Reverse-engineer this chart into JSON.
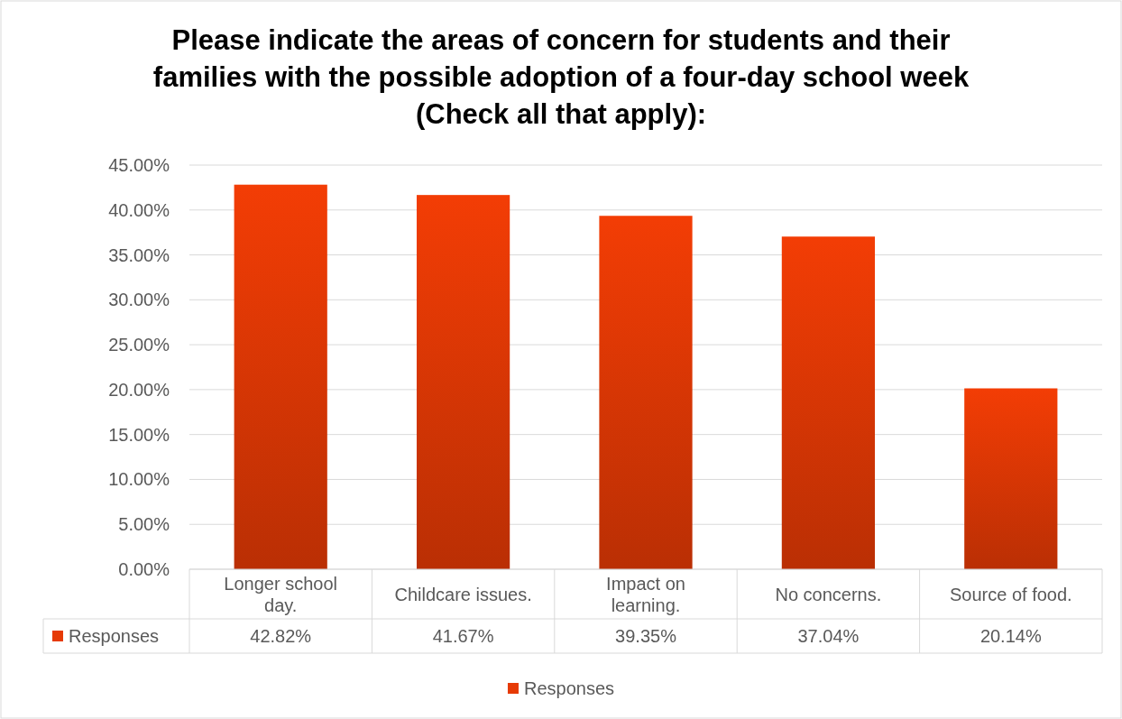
{
  "chart_data": {
    "type": "bar",
    "title": "Please indicate the areas of concern for students and their families with the possible adoption of a four-day school week (Check all that apply):",
    "categories": [
      "Longer school day.",
      "Childcare issues.",
      "Impact on learning.",
      "No concerns.",
      "Source of food."
    ],
    "series": [
      {
        "name": "Responses",
        "color": "#e63a05",
        "values": [
          42.82,
          41.67,
          39.35,
          37.04,
          20.14
        ],
        "value_labels": [
          "42.82%",
          "41.67%",
          "39.35%",
          "37.04%",
          "20.14%"
        ]
      }
    ],
    "ylim": [
      0,
      45
    ],
    "yticks": [
      {
        "value": 0,
        "label": "0.00%"
      },
      {
        "value": 5,
        "label": "5.00%"
      },
      {
        "value": 10,
        "label": "10.00%"
      },
      {
        "value": 15,
        "label": "15.00%"
      },
      {
        "value": 20,
        "label": "20.00%"
      },
      {
        "value": 25,
        "label": "25.00%"
      },
      {
        "value": 30,
        "label": "30.00%"
      },
      {
        "value": 35,
        "label": "35.00%"
      },
      {
        "value": 40,
        "label": "40.00%"
      },
      {
        "value": 45,
        "label": "45.00%"
      }
    ],
    "grid": "y",
    "legend": "bottom"
  }
}
